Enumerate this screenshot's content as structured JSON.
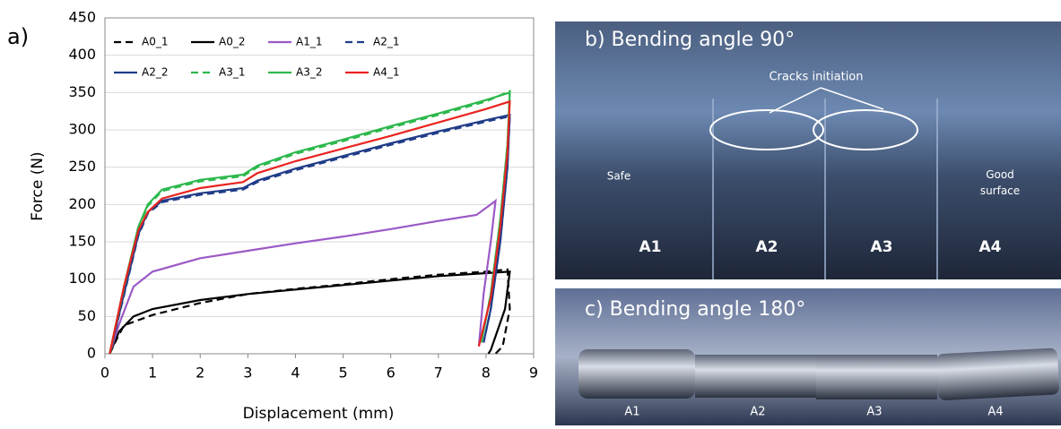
{
  "chart_data": {
    "type": "line",
    "panel_label": "a)",
    "x_label": "Displacement (mm)",
    "y_label": "Force  (N)",
    "xlim": [
      0,
      9
    ],
    "xticks": [
      0,
      1,
      2,
      3,
      4,
      5,
      6,
      7,
      8,
      9
    ],
    "ylim": [
      0,
      450
    ],
    "yticks": [
      0,
      50,
      100,
      150,
      200,
      250,
      300,
      350,
      400,
      450
    ],
    "grid": true,
    "legend": "top-left",
    "series": [
      {
        "name": "A0_1",
        "color": "#000000",
        "dash": true,
        "x": [
          0.1,
          0.25,
          0.4,
          1,
          2,
          3,
          4,
          5,
          6,
          7,
          8,
          8.45,
          8.5,
          8.35,
          8.2
        ],
        "values": [
          0,
          20,
          38,
          52,
          68,
          80,
          87,
          93,
          100,
          106,
          110,
          113,
          60,
          10,
          0
        ]
      },
      {
        "name": "A0_2",
        "color": "#000000",
        "dash": false,
        "x": [
          0.1,
          0.3,
          0.6,
          1,
          2,
          3,
          4,
          5,
          6,
          7,
          8,
          8.5,
          8.4,
          8.1,
          8.05
        ],
        "values": [
          0,
          30,
          50,
          60,
          72,
          80,
          86,
          92,
          98,
          104,
          108,
          110,
          60,
          5,
          0
        ]
      },
      {
        "name": "A1_1",
        "color": "#9b59c6",
        "dash": false,
        "x": [
          0.1,
          0.3,
          0.6,
          1,
          2,
          3,
          4,
          5,
          6,
          7,
          7.8,
          8.1,
          8.2,
          8.1,
          7.95,
          7.85
        ],
        "values": [
          0,
          40,
          90,
          110,
          128,
          138,
          148,
          157,
          167,
          178,
          186,
          200,
          205,
          150,
          80,
          10
        ]
      },
      {
        "name": "A2_1",
        "color": "#1f3c88",
        "dash": true,
        "x": [
          0.1,
          0.4,
          0.7,
          0.9,
          1.2,
          2,
          2.9,
          3.2,
          4,
          5,
          6,
          7,
          8,
          8.5,
          8.45,
          8.3,
          8.1,
          7.95
        ],
        "values": [
          0,
          78,
          158,
          188,
          203,
          213,
          220,
          230,
          246,
          263,
          280,
          296,
          311,
          318,
          250,
          150,
          60,
          15
        ]
      },
      {
        "name": "A2_2",
        "color": "#1f3c88",
        "dash": false,
        "x": [
          0.1,
          0.4,
          0.7,
          0.9,
          1.2,
          2,
          2.9,
          3.2,
          4,
          5,
          6,
          7,
          8,
          8.5,
          8.45,
          8.3,
          8.1,
          7.95
        ],
        "values": [
          0,
          80,
          160,
          190,
          205,
          215,
          222,
          232,
          248,
          265,
          282,
          298,
          313,
          320,
          250,
          150,
          60,
          15
        ]
      },
      {
        "name": "A3_1",
        "color": "#2db84d",
        "dash": true,
        "x": [
          0.1,
          0.4,
          0.7,
          0.9,
          1.2,
          2,
          2.9,
          3.2,
          4,
          5,
          6,
          7,
          8,
          8.5,
          8.45,
          8.3,
          8.1,
          7.9
        ],
        "values": [
          0,
          88,
          168,
          198,
          218,
          231,
          238,
          250,
          268,
          285,
          303,
          320,
          338,
          352,
          280,
          180,
          80,
          15
        ]
      },
      {
        "name": "A3_2",
        "color": "#2db84d",
        "dash": false,
        "x": [
          0.1,
          0.4,
          0.7,
          0.9,
          1.2,
          2,
          2.9,
          3.2,
          4,
          5,
          6,
          7,
          8,
          8.5,
          8.45,
          8.3,
          8.1,
          7.9
        ],
        "values": [
          0,
          90,
          170,
          200,
          220,
          233,
          240,
          252,
          270,
          287,
          305,
          322,
          340,
          350,
          280,
          180,
          80,
          15
        ]
      },
      {
        "name": "A4_1",
        "color": "#e8231f",
        "dash": false,
        "x": [
          0.1,
          0.4,
          0.7,
          0.9,
          1.2,
          2,
          2.9,
          3.2,
          4,
          5,
          6,
          7,
          8,
          8.5,
          8.45,
          8.3,
          8.1,
          7.85
        ],
        "values": [
          0,
          90,
          165,
          190,
          208,
          222,
          230,
          242,
          258,
          275,
          292,
          310,
          328,
          338,
          270,
          170,
          75,
          10
        ]
      }
    ]
  },
  "photos": {
    "b": {
      "title": "b) Bending angle 90°",
      "note": "Cracks initiation",
      "left_note": "Safe",
      "right_note": "Good surface",
      "labels": [
        "A1",
        "A2",
        "A3",
        "A4"
      ]
    },
    "c": {
      "title": "c) Bending angle 180°",
      "labels": [
        "A1",
        "A2",
        "A3",
        "A4"
      ]
    }
  }
}
